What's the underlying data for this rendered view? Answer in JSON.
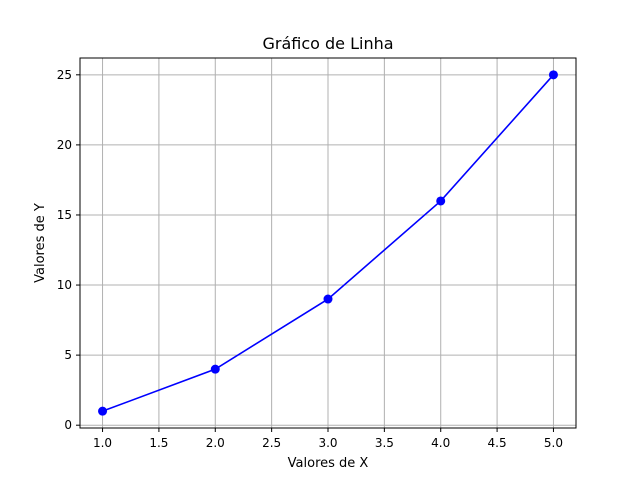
{
  "chart_data": {
    "type": "line",
    "title": "Gráfico de Linha",
    "xlabel": "Valores de X",
    "ylabel": "Valores de Y",
    "x": [
      1,
      2,
      3,
      4,
      5
    ],
    "series": [
      {
        "values": [
          1,
          4,
          9,
          16,
          25
        ],
        "color": "#0000ff",
        "marker": "circle"
      }
    ],
    "xlim": [
      0.8,
      5.2
    ],
    "ylim": [
      -0.2,
      26.2
    ],
    "xticks": [
      "1.0",
      "1.5",
      "2.0",
      "2.5",
      "3.0",
      "3.5",
      "4.0",
      "4.5",
      "5.0"
    ],
    "yticks": [
      "0",
      "5",
      "10",
      "15",
      "20",
      "25"
    ],
    "grid": true
  }
}
